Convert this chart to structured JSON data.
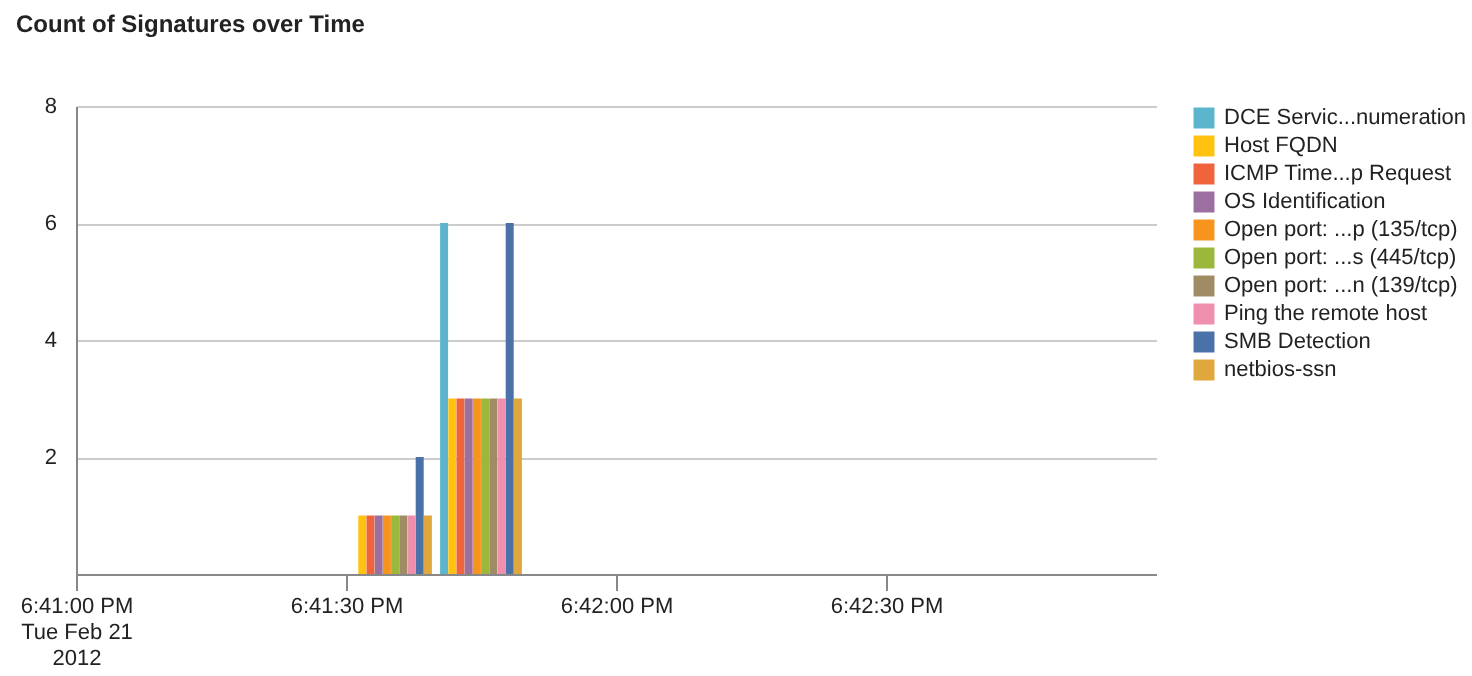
{
  "chart_data": {
    "type": "bar",
    "title": "Count of Signatures over Time",
    "x": [
      "2012-02-21T18:41:35",
      "2012-02-21T18:41:45"
    ],
    "series": [
      {
        "name": "DCE Servic...numeration",
        "color": "#5bb5cc",
        "values": [
          null,
          6
        ]
      },
      {
        "name": "Host FQDN",
        "color": "#ffc20e",
        "values": [
          1,
          3
        ]
      },
      {
        "name": "ICMP Time...p Request",
        "color": "#f0643c",
        "values": [
          1,
          3
        ]
      },
      {
        "name": "OS Identification",
        "color": "#9b6fa0",
        "values": [
          1,
          3
        ]
      },
      {
        "name": "Open port: ...p (135/tcp)",
        "color": "#f7941e",
        "values": [
          1,
          3
        ]
      },
      {
        "name": "Open port: ...s (445/tcp)",
        "color": "#9bb83c",
        "values": [
          1,
          3
        ]
      },
      {
        "name": "Open port: ...n (139/tcp)",
        "color": "#a08c64",
        "values": [
          1,
          3
        ]
      },
      {
        "name": "Ping the remote host",
        "color": "#ee8fad",
        "values": [
          1,
          3
        ]
      },
      {
        "name": "SMB Detection",
        "color": "#4a72a8",
        "values": [
          2,
          6
        ]
      },
      {
        "name": "netbios-ssn",
        "color": "#e0a83c",
        "values": [
          1,
          3
        ]
      }
    ],
    "xlim": [
      "2012-02-21T18:41:00",
      "2012-02-21T18:43:00"
    ],
    "xticks": [
      {
        "value": "2012-02-21T18:41:00",
        "label": "6:41:00 PM\nTue Feb 21\n2012"
      },
      {
        "value": "2012-02-21T18:41:30",
        "label": "6:41:30 PM"
      },
      {
        "value": "2012-02-21T18:42:00",
        "label": "6:42:00 PM"
      },
      {
        "value": "2012-02-21T18:42:30",
        "label": "6:42:30 PM"
      }
    ],
    "ylim": [
      0,
      8
    ],
    "yticks": [
      2,
      4,
      6,
      8
    ],
    "grid": "y",
    "legend": "right"
  }
}
